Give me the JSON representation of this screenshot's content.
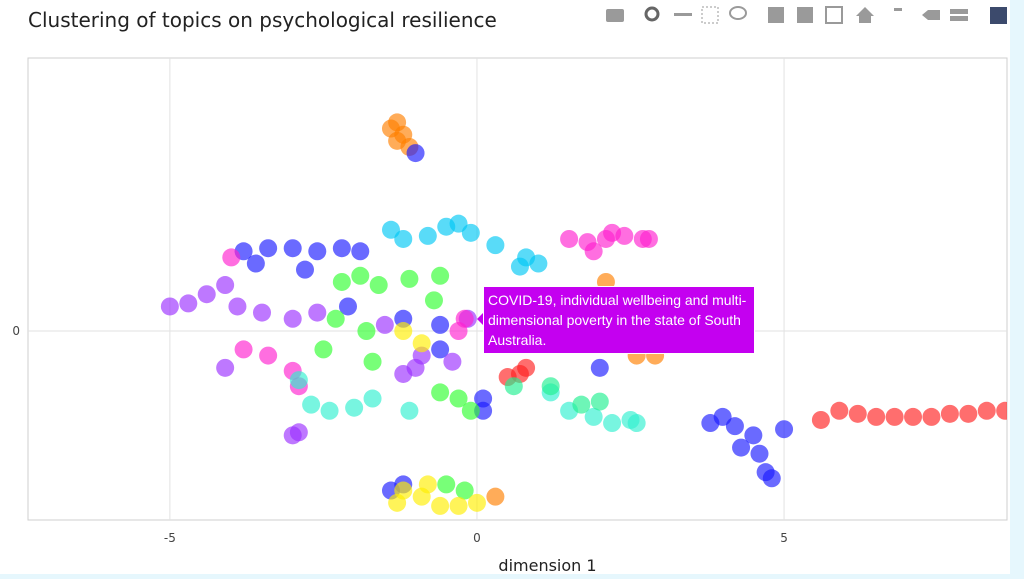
{
  "chart_data": {
    "type": "scatter",
    "title": "Clustering of topics on psychological resilience",
    "x_label": "dimension 1",
    "xlim": [
      -7.31,
      8.63
    ],
    "ylim": [
      -3.08,
      4.45
    ],
    "xticks": [
      -5,
      0,
      5
    ],
    "yticks": [
      0
    ],
    "grid": true,
    "tooltip": "COVID-19, individual wellbeing and multi-dimensional poverty in the state of South Australia.",
    "series": [
      {
        "color": "#ff8000",
        "x": [
          -1.3,
          -1.2,
          -1.1,
          -1.3,
          -1.4,
          2.6,
          2.9,
          2.1,
          0.3
        ],
        "y": [
          3.4,
          3.2,
          3.0,
          3.1,
          3.3,
          -0.4,
          -0.4,
          0.8,
          -2.7
        ]
      },
      {
        "color": "#ff2020",
        "x": [
          5.6,
          5.9,
          6.2,
          6.5,
          6.8,
          7.1,
          7.4,
          7.7,
          8.0,
          8.3,
          8.6,
          0.7,
          0.5,
          0.8
        ],
        "y": [
          -1.45,
          -1.3,
          -1.35,
          -1.4,
          -1.4,
          -1.4,
          -1.4,
          -1.35,
          -1.35,
          -1.3,
          -1.3,
          -0.7,
          -0.75,
          -0.6
        ]
      },
      {
        "color": "#1a1aff",
        "x": [
          -1.0,
          3.8,
          4.2,
          4.5,
          4.6,
          4.7,
          4.8,
          4.3,
          5.0,
          4.0,
          -3.8,
          -3.4,
          -3.0,
          -2.6,
          -2.2,
          -1.9,
          -3.6,
          -2.8,
          -1.2,
          -2.1,
          -0.6,
          -0.6,
          0.1,
          0.1,
          -1.2,
          -1.4,
          2.0
        ],
        "y": [
          2.9,
          -1.5,
          -1.55,
          -1.7,
          -2.0,
          -2.3,
          -2.4,
          -1.9,
          -1.6,
          -1.4,
          1.3,
          1.35,
          1.35,
          1.3,
          1.35,
          1.3,
          1.1,
          1.0,
          0.2,
          0.4,
          -0.3,
          0.1,
          -1.1,
          -1.3,
          -2.5,
          -2.6,
          -0.6
        ]
      },
      {
        "color": "#9b30ff",
        "x": [
          -5.0,
          -4.7,
          -4.4,
          -4.1,
          -3.9,
          -3.5,
          -3.0,
          -2.6,
          -1.5,
          -1.0,
          -1.2,
          -0.9,
          -0.4,
          -2.9,
          -3.0,
          -4.1,
          -0.15
        ],
        "y": [
          0.4,
          0.45,
          0.6,
          0.75,
          0.4,
          0.3,
          0.2,
          0.3,
          0.1,
          -0.6,
          -0.7,
          -0.4,
          -0.5,
          -1.65,
          -1.7,
          -0.6,
          0.2
        ]
      },
      {
        "color": "#ff20d0",
        "x": [
          1.5,
          1.8,
          2.1,
          2.4,
          2.7,
          2.8,
          2.2,
          1.9,
          -4.0,
          -3.8,
          -3.4,
          -3.0,
          -2.9,
          -0.2,
          -0.3
        ],
        "y": [
          1.5,
          1.45,
          1.5,
          1.55,
          1.5,
          1.5,
          1.6,
          1.3,
          1.2,
          -0.3,
          -0.4,
          -0.65,
          -0.9,
          0.2,
          0.0
        ]
      },
      {
        "color": "#00c8f5",
        "x": [
          -1.2,
          -0.8,
          -0.5,
          -0.3,
          -0.1,
          0.3,
          0.7,
          1.0,
          0.8,
          -1.4
        ],
        "y": [
          1.5,
          1.55,
          1.7,
          1.75,
          1.6,
          1.4,
          1.05,
          1.1,
          1.2,
          1.65
        ]
      },
      {
        "color": "#30ff30",
        "x": [
          -2.2,
          -1.9,
          -1.6,
          -1.1,
          -0.6,
          -2.3,
          -2.5,
          -1.8,
          -0.7,
          -1.7,
          -0.3,
          -0.1,
          -0.2,
          -0.5,
          -0.6
        ],
        "y": [
          0.8,
          0.9,
          0.75,
          0.85,
          0.9,
          0.2,
          -0.3,
          0.0,
          0.5,
          -0.5,
          -1.1,
          -1.3,
          -2.6,
          -2.5,
          -1.0
        ]
      },
      {
        "color": "#30f0d0",
        "x": [
          -2.9,
          -2.7,
          -2.4,
          -2.0,
          -1.7,
          -1.1,
          1.2,
          1.5,
          1.9,
          2.2,
          2.5,
          2.6,
          1.0
        ],
        "y": [
          -0.8,
          -1.2,
          -1.3,
          -1.25,
          -1.1,
          -1.3,
          -1.0,
          -1.3,
          -1.4,
          -1.5,
          -1.45,
          -1.5,
          -0.1
        ]
      },
      {
        "color": "#20f090",
        "x": [
          1.2,
          1.7,
          2.0,
          0.6
        ],
        "y": [
          -0.9,
          -1.2,
          -1.15,
          -0.9
        ]
      },
      {
        "color": "#ffee00",
        "x": [
          -1.2,
          -0.9,
          -0.6,
          -0.3,
          0.0,
          -0.8,
          -1.3,
          -1.2,
          -0.9
        ],
        "y": [
          -2.6,
          -2.7,
          -2.85,
          -2.85,
          -2.8,
          -2.5,
          -2.8,
          0.0,
          -0.2
        ]
      }
    ]
  }
}
